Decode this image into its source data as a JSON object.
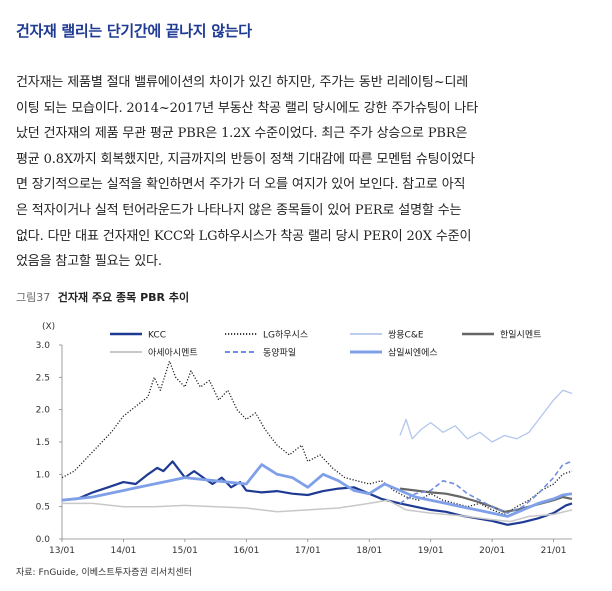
{
  "heading": "건자재 랠리는 단기간에 끝나지 않는다",
  "paragraph_lines": [
    "건자재는 제품별 절대 밸류에이션의 차이가 있긴 하지만, 주가는 동반 리레이팅~디레",
    "이팅 되는 모습이다. 2014~2017년 부동산 착공 랠리 당시에도 강한 주가슈팅이 나타",
    "났던 건자재의 제품 무관 평균 PBR은 1.2X 수준이었다. 최근 주가 상승으로 PBR은",
    "평균 0.8X까지 회복했지만, 지금까지의 반등이 정책 기대감에 따른 모멘텀 슈팅이었다",
    "면 장기적으로는 실적을 확인하면서 주가가 더 오를 여지가 있어 보인다. 참고로 아직",
    "은 적자이거나 실적 턴어라운드가 나타나지 않은 종목들이 있어 PER로 설명할 수는",
    "없다. 다만 대표 건자재인 KCC와 LG하우시스가 착공 랠리 당시 PER이 20X 수준이",
    "었음을 참고할 필요는 있다."
  ],
  "figure": {
    "label": "그림37",
    "title": "건자재 주요 종목 PBR 추이"
  },
  "source": "자료: FnGuide, 이베스트투자증권 리서치센터",
  "chart_data": {
    "type": "line",
    "ylabel": "(X)",
    "ylim": [
      0.0,
      3.0
    ],
    "yticks": [
      "0.0",
      "0.5",
      "1.0",
      "1.5",
      "2.0",
      "2.5",
      "3.0"
    ],
    "xticks": [
      "13/01",
      "14/01",
      "15/01",
      "16/01",
      "17/01",
      "18/01",
      "19/01",
      "20/01",
      "21/01"
    ],
    "x_start": 2013.0,
    "x_end": 2021.3,
    "series": [
      {
        "name": "KCC",
        "color": "#1f3a93",
        "style": "solid",
        "width": 2.2,
        "points": [
          [
            2013.0,
            0.6
          ],
          [
            2013.25,
            0.62
          ],
          [
            2013.5,
            0.72
          ],
          [
            2013.75,
            0.8
          ],
          [
            2014.0,
            0.88
          ],
          [
            2014.2,
            0.85
          ],
          [
            2014.4,
            1.0
          ],
          [
            2014.55,
            1.1
          ],
          [
            2014.65,
            1.05
          ],
          [
            2014.8,
            1.2
          ],
          [
            2015.0,
            0.95
          ],
          [
            2015.15,
            1.05
          ],
          [
            2015.3,
            0.95
          ],
          [
            2015.45,
            0.85
          ],
          [
            2015.6,
            0.95
          ],
          [
            2015.75,
            0.8
          ],
          [
            2015.9,
            0.88
          ],
          [
            2016.0,
            0.75
          ],
          [
            2016.25,
            0.72
          ],
          [
            2016.5,
            0.74
          ],
          [
            2016.75,
            0.7
          ],
          [
            2017.0,
            0.68
          ],
          [
            2017.25,
            0.74
          ],
          [
            2017.5,
            0.78
          ],
          [
            2017.75,
            0.8
          ],
          [
            2018.0,
            0.7
          ],
          [
            2018.2,
            0.62
          ],
          [
            2018.5,
            0.55
          ],
          [
            2018.75,
            0.5
          ],
          [
            2019.0,
            0.45
          ],
          [
            2019.25,
            0.42
          ],
          [
            2019.5,
            0.36
          ],
          [
            2019.75,
            0.32
          ],
          [
            2020.0,
            0.28
          ],
          [
            2020.25,
            0.22
          ],
          [
            2020.5,
            0.26
          ],
          [
            2020.75,
            0.32
          ],
          [
            2021.0,
            0.4
          ],
          [
            2021.2,
            0.52
          ],
          [
            2021.3,
            0.55
          ]
        ]
      },
      {
        "name": "LG하우시스",
        "color": "#222222",
        "style": "dotted",
        "width": 1.3,
        "points": [
          [
            2013.0,
            0.95
          ],
          [
            2013.2,
            1.05
          ],
          [
            2013.4,
            1.25
          ],
          [
            2013.6,
            1.45
          ],
          [
            2013.8,
            1.65
          ],
          [
            2014.0,
            1.9
          ],
          [
            2014.2,
            2.05
          ],
          [
            2014.4,
            2.2
          ],
          [
            2014.5,
            2.5
          ],
          [
            2014.6,
            2.3
          ],
          [
            2014.75,
            2.75
          ],
          [
            2014.85,
            2.5
          ],
          [
            2015.0,
            2.35
          ],
          [
            2015.1,
            2.6
          ],
          [
            2015.25,
            2.35
          ],
          [
            2015.4,
            2.45
          ],
          [
            2015.55,
            2.15
          ],
          [
            2015.7,
            2.3
          ],
          [
            2015.85,
            2.0
          ],
          [
            2016.0,
            1.85
          ],
          [
            2016.15,
            1.95
          ],
          [
            2016.3,
            1.7
          ],
          [
            2016.5,
            1.45
          ],
          [
            2016.7,
            1.3
          ],
          [
            2016.9,
            1.45
          ],
          [
            2017.0,
            1.2
          ],
          [
            2017.2,
            1.3
          ],
          [
            2017.4,
            1.1
          ],
          [
            2017.6,
            0.95
          ],
          [
            2017.8,
            0.9
          ],
          [
            2018.0,
            0.85
          ],
          [
            2018.2,
            0.9
          ],
          [
            2018.4,
            0.75
          ],
          [
            2018.6,
            0.65
          ],
          [
            2018.8,
            0.6
          ],
          [
            2019.0,
            0.7
          ],
          [
            2019.2,
            0.6
          ],
          [
            2019.4,
            0.55
          ],
          [
            2019.6,
            0.5
          ],
          [
            2019.8,
            0.55
          ],
          [
            2020.0,
            0.45
          ],
          [
            2020.2,
            0.38
          ],
          [
            2020.4,
            0.5
          ],
          [
            2020.6,
            0.6
          ],
          [
            2020.8,
            0.75
          ],
          [
            2021.0,
            0.85
          ],
          [
            2021.15,
            1.0
          ],
          [
            2021.3,
            1.05
          ]
        ]
      },
      {
        "name": "쌍용C&E",
        "color": "#b3c6ec",
        "style": "solid",
        "width": 1.3,
        "points": [
          [
            2018.5,
            1.6
          ],
          [
            2018.6,
            1.85
          ],
          [
            2018.7,
            1.55
          ],
          [
            2018.85,
            1.7
          ],
          [
            2019.0,
            1.8
          ],
          [
            2019.2,
            1.65
          ],
          [
            2019.4,
            1.75
          ],
          [
            2019.6,
            1.55
          ],
          [
            2019.8,
            1.65
          ],
          [
            2020.0,
            1.5
          ],
          [
            2020.2,
            1.6
          ],
          [
            2020.4,
            1.55
          ],
          [
            2020.6,
            1.65
          ],
          [
            2020.8,
            1.9
          ],
          [
            2021.0,
            2.15
          ],
          [
            2021.15,
            2.3
          ],
          [
            2021.3,
            2.25
          ]
        ]
      },
      {
        "name": "한일시멘트",
        "color": "#666666",
        "style": "solid",
        "width": 2.2,
        "points": [
          [
            2018.5,
            0.78
          ],
          [
            2018.75,
            0.75
          ],
          [
            2019.0,
            0.72
          ],
          [
            2019.25,
            0.7
          ],
          [
            2019.5,
            0.65
          ],
          [
            2019.75,
            0.58
          ],
          [
            2020.0,
            0.5
          ],
          [
            2020.2,
            0.42
          ],
          [
            2020.4,
            0.45
          ],
          [
            2020.6,
            0.5
          ],
          [
            2020.8,
            0.55
          ],
          [
            2021.0,
            0.6
          ],
          [
            2021.15,
            0.65
          ],
          [
            2021.3,
            0.62
          ]
        ]
      },
      {
        "name": "아세아시멘트",
        "color": "#c8c8c8",
        "style": "solid",
        "width": 1.5,
        "points": [
          [
            2013.0,
            0.55
          ],
          [
            2013.5,
            0.55
          ],
          [
            2014.0,
            0.5
          ],
          [
            2014.5,
            0.5
          ],
          [
            2015.0,
            0.52
          ],
          [
            2015.5,
            0.5
          ],
          [
            2016.0,
            0.48
          ],
          [
            2016.5,
            0.42
          ],
          [
            2017.0,
            0.45
          ],
          [
            2017.5,
            0.48
          ],
          [
            2018.0,
            0.55
          ],
          [
            2018.3,
            0.6
          ],
          [
            2018.6,
            0.45
          ],
          [
            2019.0,
            0.4
          ],
          [
            2019.5,
            0.36
          ],
          [
            2020.0,
            0.3
          ],
          [
            2020.3,
            0.27
          ],
          [
            2020.6,
            0.35
          ],
          [
            2021.0,
            0.38
          ],
          [
            2021.3,
            0.45
          ]
        ]
      },
      {
        "name": "동양파일",
        "color": "#6f8fdc",
        "style": "dashed",
        "width": 1.6,
        "points": [
          [
            2018.5,
            0.55
          ],
          [
            2018.75,
            0.7
          ],
          [
            2019.0,
            0.75
          ],
          [
            2019.2,
            0.9
          ],
          [
            2019.4,
            0.85
          ],
          [
            2019.6,
            0.7
          ],
          [
            2019.8,
            0.6
          ],
          [
            2020.0,
            0.5
          ],
          [
            2020.25,
            0.4
          ],
          [
            2020.5,
            0.5
          ],
          [
            2020.75,
            0.7
          ],
          [
            2021.0,
            0.95
          ],
          [
            2021.15,
            1.15
          ],
          [
            2021.3,
            1.2
          ]
        ]
      },
      {
        "name": "삼일씨엔에스",
        "color": "#7fa0e8",
        "style": "solid",
        "width": 2.8,
        "points": [
          [
            2013.0,
            0.6
          ],
          [
            2013.5,
            0.65
          ],
          [
            2014.0,
            0.75
          ],
          [
            2014.5,
            0.85
          ],
          [
            2015.0,
            0.95
          ],
          [
            2015.5,
            0.9
          ],
          [
            2016.0,
            0.85
          ],
          [
            2016.25,
            1.15
          ],
          [
            2016.5,
            1.0
          ],
          [
            2016.75,
            0.95
          ],
          [
            2017.0,
            0.8
          ],
          [
            2017.25,
            1.0
          ],
          [
            2017.5,
            0.9
          ],
          [
            2017.75,
            0.75
          ],
          [
            2018.0,
            0.7
          ],
          [
            2018.25,
            0.85
          ],
          [
            2018.5,
            0.75
          ],
          [
            2018.75,
            0.65
          ],
          [
            2019.0,
            0.6
          ],
          [
            2019.25,
            0.55
          ],
          [
            2019.5,
            0.5
          ],
          [
            2019.75,
            0.45
          ],
          [
            2020.0,
            0.4
          ],
          [
            2020.25,
            0.35
          ],
          [
            2020.5,
            0.45
          ],
          [
            2020.75,
            0.55
          ],
          [
            2021.0,
            0.62
          ],
          [
            2021.15,
            0.68
          ],
          [
            2021.3,
            0.7
          ]
        ]
      }
    ]
  }
}
